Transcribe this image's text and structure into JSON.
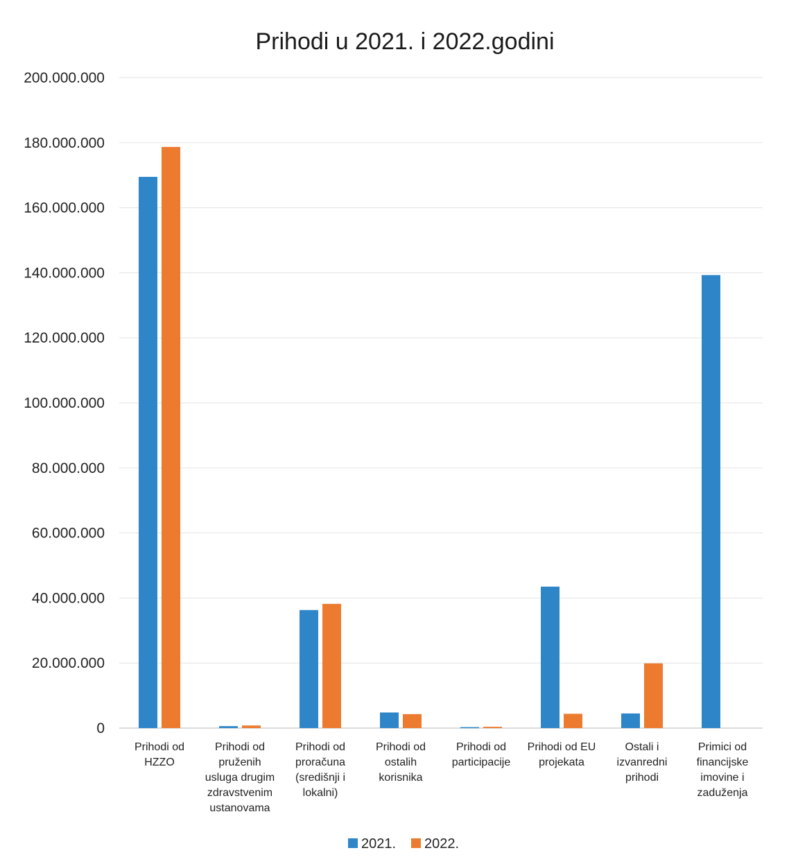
{
  "chart_data": {
    "type": "bar",
    "title": "Prihodi u 2021. i 2022.godini",
    "categories": [
      [
        "Prihodi od",
        "HZZO"
      ],
      [
        "Prihodi od",
        "pruženih",
        "usluga drugim",
        "zdravstvenim",
        "ustanovama"
      ],
      [
        "Prihodi od",
        "proračuna",
        "(središnji i",
        "lokalni)"
      ],
      [
        "Prihodi od",
        "ostalih",
        "korisnika"
      ],
      [
        "Prihodi od",
        "participacije"
      ],
      [
        "Prihodi od EU",
        "projekata"
      ],
      [
        "Ostali i",
        "izvanredni",
        "prihodi"
      ],
      [
        "Primici od",
        "financijske",
        "imovine i",
        "zaduženja"
      ]
    ],
    "series": [
      {
        "name": "2021.",
        "color": "#2e86c8",
        "values": [
          169500000,
          600000,
          36300000,
          4800000,
          300000,
          43500000,
          4500000,
          139300000
        ]
      },
      {
        "name": "2022.",
        "color": "#ec7b2f",
        "values": [
          178700000,
          800000,
          38200000,
          4300000,
          400000,
          4400000,
          19900000,
          0
        ]
      }
    ],
    "ylim": [
      0,
      200000000
    ],
    "yticks": [
      0,
      20000000,
      40000000,
      60000000,
      80000000,
      100000000,
      120000000,
      140000000,
      160000000,
      180000000,
      200000000
    ],
    "ytick_labels": [
      "0",
      "20.000.000",
      "40.000.000",
      "60.000.000",
      "80.000.000",
      "100.000.000",
      "120.000.000",
      "140.000.000",
      "160.000.000",
      "180.000.000",
      "200.000.000"
    ],
    "xlabel": "",
    "ylabel": "",
    "grid": true,
    "legend_position": "bottom"
  }
}
